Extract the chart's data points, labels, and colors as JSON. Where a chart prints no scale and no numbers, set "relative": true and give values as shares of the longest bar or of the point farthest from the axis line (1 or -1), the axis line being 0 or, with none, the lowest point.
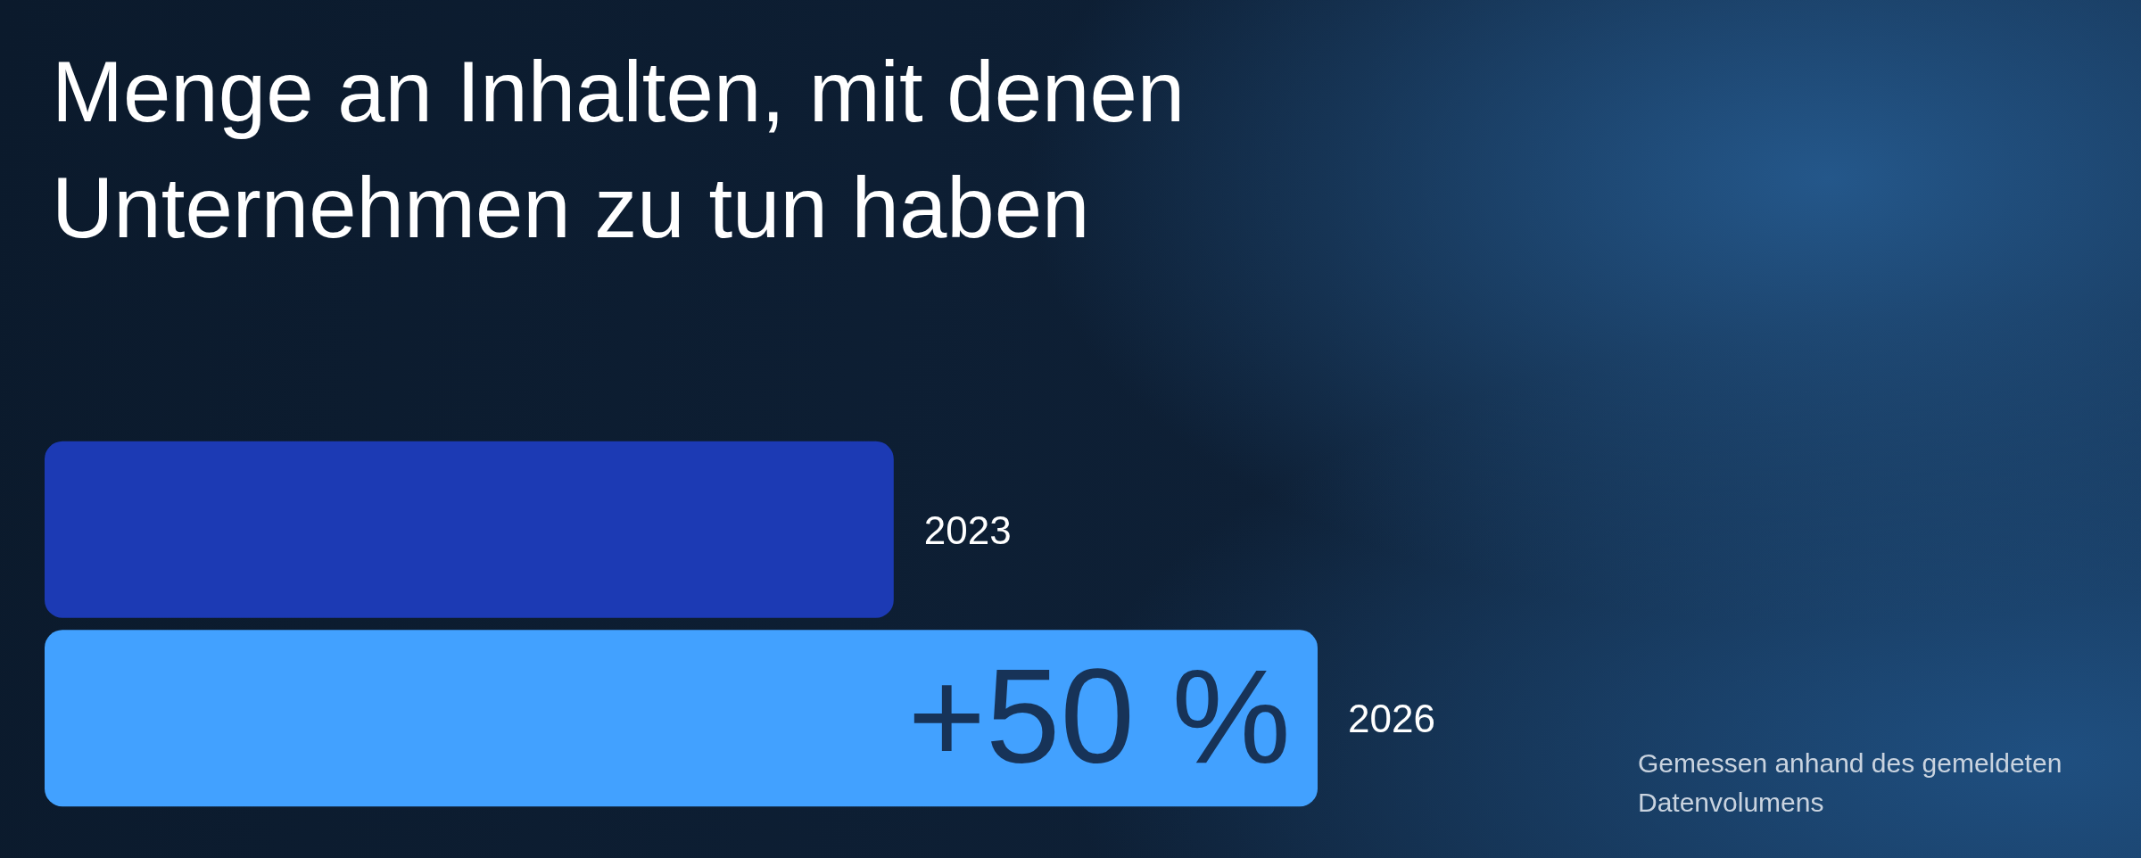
{
  "chart_data": {
    "type": "bar",
    "orientation": "horizontal",
    "relative": true,
    "title": "Menge an Inhalten, mit denen Unternehmen zu tun haben",
    "categories": [
      "2023",
      "2026"
    ],
    "values": [
      0.667,
      1
    ],
    "colors": [
      "#1c3ab4",
      "#42a1ff"
    ],
    "annotations": [
      {
        "text": "+50 %",
        "x": 1,
        "y": "2026"
      },
      "Gemessen anhand des gemeldeten Datenvolumens"
    ]
  }
}
